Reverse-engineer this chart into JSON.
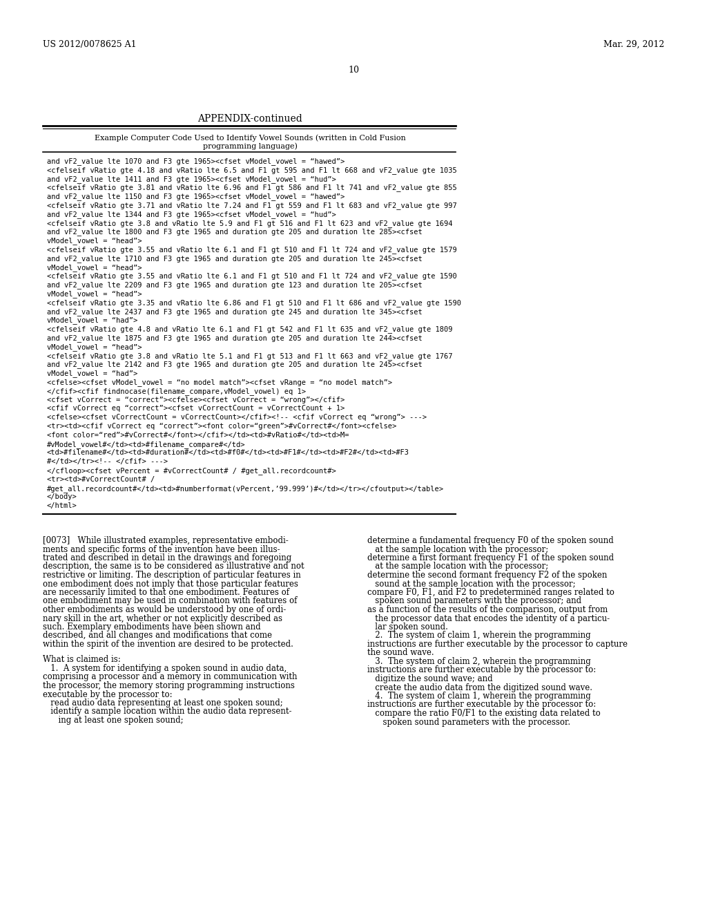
{
  "header_left": "US 2012/0078625 A1",
  "header_right": "Mar. 29, 2012",
  "page_number": "10",
  "appendix_title": "APPENDIX-continued",
  "table_caption_line1": "Example Computer Code Used to Identify Vowel Sounds (written in Cold Fusion",
  "table_caption_line2": "programming language)",
  "code_lines": [
    "and vF2_value lte 1070 and F3 gte 1965><cfset vModel_vowel = “hawed”>",
    "<cfelseif vRatio gte 4.18 and vRatio lte 6.5 and F1 gt 595 and F1 lt 668 and vF2_value gte 1035",
    "and vF2_value lte 1411 and F3 gte 1965><cfset vModel_vowel = “hud”>",
    "<cfelseif vRatio gte 3.81 and vRatio lte 6.96 and F1 gt 586 and F1 lt 741 and vF2_value gte 855",
    "and vF2_value lte 1150 and F3 gte 1965><cfset vModel_vowel = “hawed”>",
    "<cfelseif vRatio gte 3.71 and vRatio lte 7.24 and F1 gt 559 and F1 lt 683 and vF2_value gte 997",
    "and vF2_value lte 1344 and F3 gte 1965><cfset vModel_vowel = “hud”>",
    "<cfelseif vRatio gte 3.8 and vRatio lte 5.9 and F1 gt 516 and F1 lt 623 and vF2_value gte 1694",
    "and vF2_value lte 1800 and F3 gte 1965 and duration gte 205 and duration lte 285><cfset",
    "vModel_vowel = “head”>",
    "<cfelseif vRatio gte 3.55 and vRatio lte 6.1 and F1 gt 510 and F1 lt 724 and vF2_value gte 1579",
    "and vF2_value lte 1710 and F3 gte 1965 and duration gte 205 and duration lte 245><cfset",
    "vModel_vowel = “head”>",
    "<cfelseif vRatio gte 3.55 and vRatio lte 6.1 and F1 gt 510 and F1 lt 724 and vF2_value gte 1590",
    "and vF2_value lte 2209 and F3 gte 1965 and duration gte 123 and duration lte 205><cfset",
    "vModel_vowel = “head”>",
    "<cfelseif vRatio gte 3.35 and vRatio lte 6.86 and F1 gt 510 and F1 lt 686 and vF2_value gte 1590",
    "and vF2_value lte 2437 and F3 gte 1965 and duration gte 245 and duration lte 345><cfset",
    "vModel_vowel = “had”>",
    "<cfelseif vRatio gte 4.8 and vRatio lte 6.1 and F1 gt 542 and F1 lt 635 and vF2_value gte 1809",
    "and vF2_value lte 1875 and F3 gte 1965 and duration gte 205 and duration lte 244><cfset",
    "vModel_vowel = “head”>",
    "<cfelseif vRatio gte 3.8 and vRatio lte 5.1 and F1 gt 513 and F1 lt 663 and vF2_value gte 1767",
    "and vF2_value lte 2142 and F3 gte 1965 and duration gte 205 and duration lte 245><cfset",
    "vModel_vowel = “had”>",
    "<cfelse><cfset vModel_vowel = “no model match”><cfset vRange = “no model match”>",
    "</cfif><cfif findnocase(filename_compare,vModel_vowel) eq 1>",
    "<cfset vCorrect = “correct”><cfelse><cfset vCorrect = “wrong”></cfif>",
    "<cfif vCorrect eq “correct”><cfset vCorrectCount = vCorrectCount + 1>",
    "<cfelse><cfset vCorrectCount = vCorrectCount></cfif><!-- <cfif vCorrect eq “wrong”> --->",
    "<tr><td><cfif vCorrect eq “correct”><font color=“green”>#vCorrect#</font><cfelse>",
    "<font color=“red”>#vCorrect#</font></cfif></td><td>#vRatio#</td><td>M=",
    "#vModel_vowel#</td><td>#filename_compare#</td>",
    "<td>#filename#</td><td>#duration#</td><td>#f0#</td><td>#F1#</td><td>#F2#</td><td>#F3",
    "#</td></tr><!-- </cfif> --->",
    "</cfloop><cfset vPercent = #vCorrectCount# / #get_all.recordcount#>",
    "<tr><td>#vCorrectCount# /",
    "#get_all.recordcount#</td><td>#numberformat(vPercent,’99.999’)#</td></tr></cfoutput></table>",
    "</body>",
    "</html>"
  ],
  "left_col_blocks": [
    {
      "type": "para",
      "indent": 0,
      "text": "[0073]   While illustrated examples, representative embodi-\nments and specific forms of the invention have been illus-\ntrated and described in detail in the drawings and foregoing\ndescription, the same is to be considered as illustrative and not\nrestrictive or limiting. The description of particular features in\none embodiment does not imply that those particular features\nare necessarily limited to that one embodiment. Features of\none embodiment may be used in combination with features of\nother embodiments as would be understood by one of ordi-\nnary skill in the art, whether or not explicitly described as\nsuch. Exemplary embodiments have been shown and\ndescribed, and all changes and modifications that come\nwithin the spirit of the invention are desired to be protected."
    },
    {
      "type": "gap",
      "lines": 1
    },
    {
      "type": "para",
      "indent": 0,
      "text": "What is claimed is:"
    },
    {
      "type": "para",
      "indent": 0,
      "text": "   1.  A system for identifying a spoken sound in audio data,\ncomprising a processor and a memory in communication with\nthe processor, the memory storing programming instructions\nexecutable by the processor to:"
    },
    {
      "type": "para",
      "indent": 1,
      "text": "   read audio data representing at least one spoken sound;"
    },
    {
      "type": "para",
      "indent": 1,
      "text": "   identify a sample location within the audio data represent-\n      ing at least one spoken sound;"
    }
  ],
  "right_col_blocks": [
    {
      "type": "para",
      "text": "determine a fundamental frequency F0 of the spoken sound\n   at the sample location with the processor;"
    },
    {
      "type": "para",
      "text": "determine a first formant frequency F1 of the spoken sound\n   at the sample location with the processor;"
    },
    {
      "type": "para",
      "text": "determine the second formant frequency F2 of the spoken\n   sound at the sample location with the processor;"
    },
    {
      "type": "para",
      "text": "compare F0, F1, and F2 to predetermined ranges related to\n   spoken sound parameters with the processor; and"
    },
    {
      "type": "para",
      "text": "as a function of the results of the comparison, output from\n   the processor data that encodes the identity of a particu-\n   lar spoken sound."
    },
    {
      "type": "para",
      "text": "   2.  The system of claim 1, wherein the programming\ninstructions are further executable by the processor to capture\nthe sound wave."
    },
    {
      "type": "para",
      "text": "   3.  The system of claim 2, wherein the programming\ninstructions are further executable by the processor to:"
    },
    {
      "type": "para",
      "text": "   digitize the sound wave; and"
    },
    {
      "type": "para",
      "text": "   create the audio data from the digitized sound wave."
    },
    {
      "type": "para",
      "text": "   4.  The system of claim 1, wherein the programming\ninstructions are further executable by the processor to:"
    },
    {
      "type": "para",
      "text": "   compare the ratio F0/F1 to the existing data related to\n      spoken sound parameters with the processor."
    }
  ],
  "bg_color": "#ffffff",
  "text_color": "#000000",
  "font_size_body": 8.5,
  "font_size_code": 7.5
}
